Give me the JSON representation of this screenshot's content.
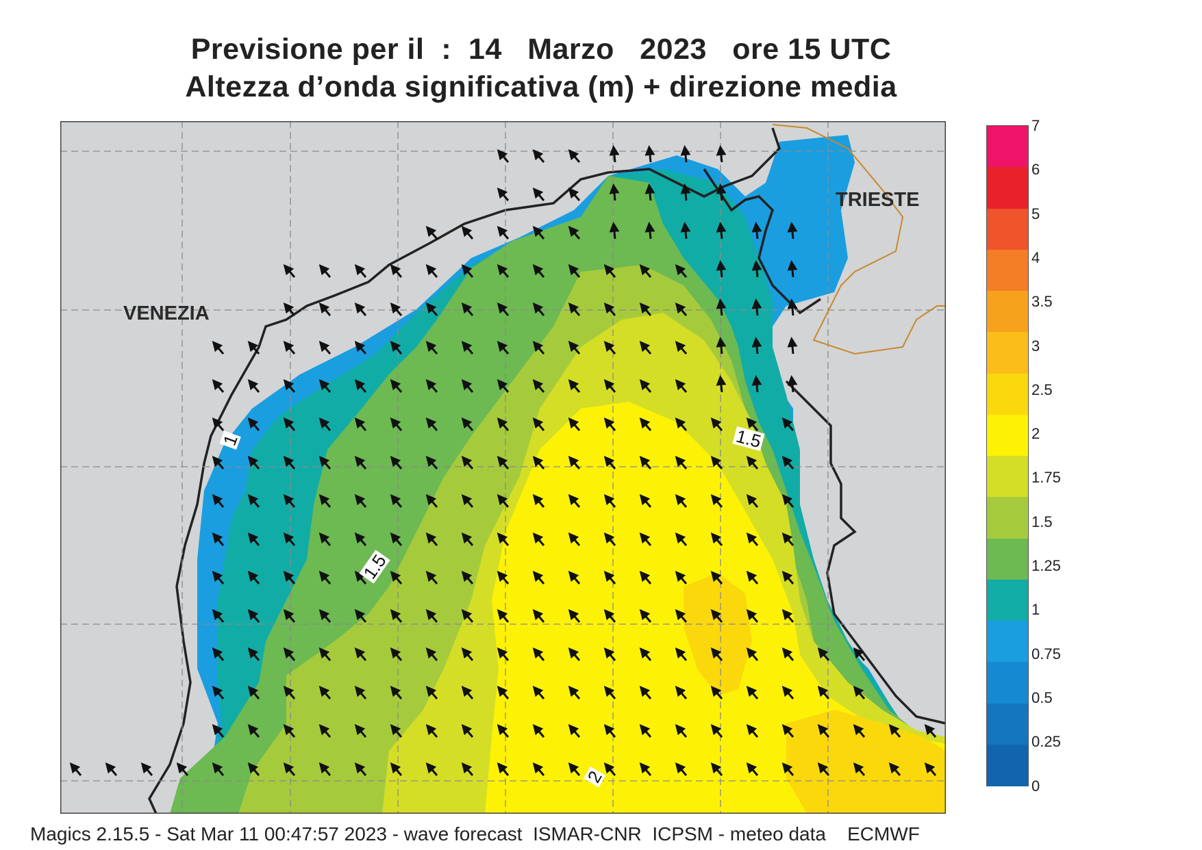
{
  "title": {
    "line1": "Previsione per il  :  14   Marzo   2023   ore 15 UTC",
    "line2": "Altezza d’onda significativa (m) + direzione media"
  },
  "cities": {
    "venezia": "VENEZIA",
    "trieste": "TRIESTE"
  },
  "contour_labels": {
    "a": "1",
    "b": "1.5",
    "c": "1.5",
    "d": "2"
  },
  "legend": {
    "labels": [
      "7",
      "6",
      "5",
      "4",
      "3.5",
      "3",
      "2.5",
      "2",
      "1.75",
      "1.5",
      "1.25",
      "1",
      "0.75",
      "0.5",
      "0.25",
      "0"
    ],
    "colors": [
      "#f0136a",
      "#e9212b",
      "#f0542a",
      "#f47e25",
      "#f7a21d",
      "#fbbd18",
      "#fbd80c",
      "#fdf205",
      "#d4de27",
      "#a5cb3c",
      "#6db952",
      "#12aca7",
      "#1a9ee0",
      "#158ad2",
      "#1476bd",
      "#1165ae"
    ]
  },
  "map_colors": {
    "land": "#d3d4d6",
    "sea_low": "#1a9ee0",
    "sea_teal": "#12aca7",
    "sea_green": "#6db952",
    "sea_lgreen": "#a5cb3c",
    "sea_ygreen": "#d4de27",
    "sea_yellow": "#fdf205",
    "sea_gold": "#fbd80c"
  },
  "wave_direction": "toward north-west",
  "footer": "Magics 2.15.5 - Sat Mar 11 00:47:57 2023 - wave forecast  ISMAR-CNR  ICPSM - meteo data    ECMWF"
}
